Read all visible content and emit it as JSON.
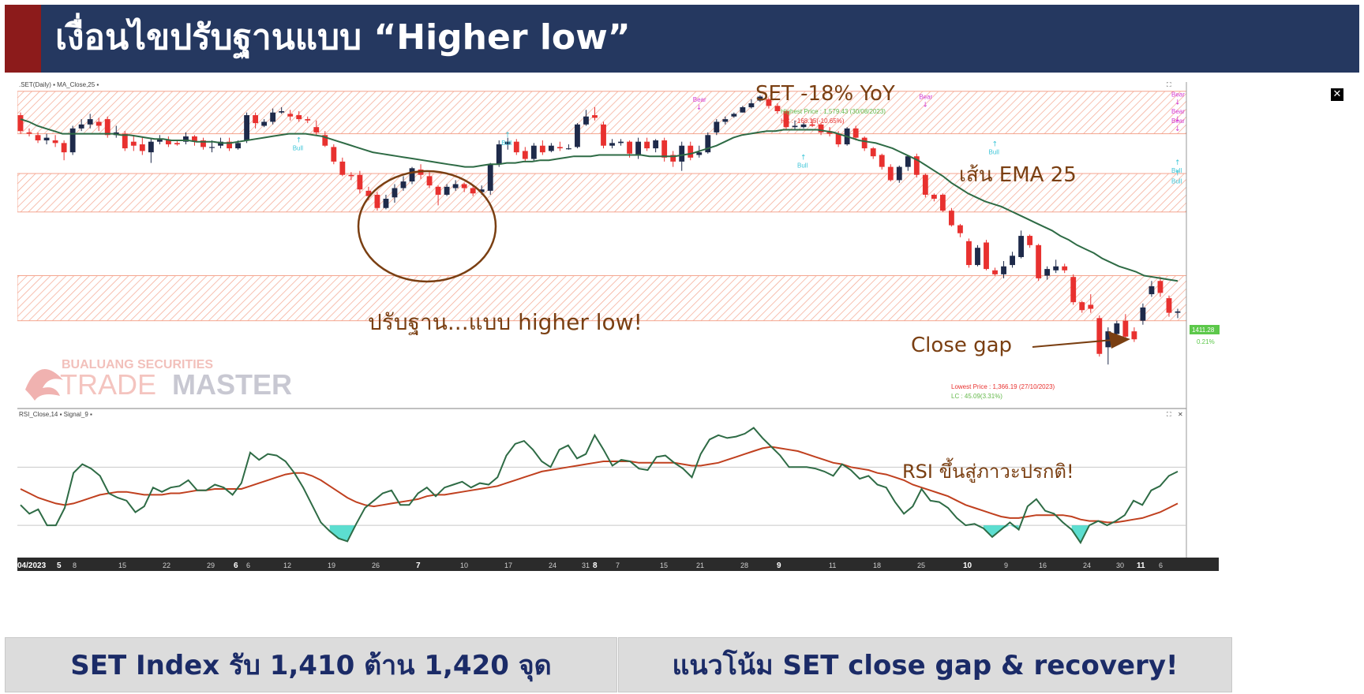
{
  "header": {
    "title": "เงื่อนไขปรับฐานแบบ “Higher low”"
  },
  "footer": {
    "left": "SET Index รับ 1,410 ต้าน 1,420 จุด",
    "right": "แนวโน้ม SET close gap & recovery!"
  },
  "colors": {
    "header_bg": "#253860",
    "header_accent": "#8c1b1b",
    "bull_candle": "#1e2a4a",
    "bear_candle": "#e8312f",
    "ema": "#2e6b45",
    "rsi": "#2e6b45",
    "signal": "#c0401f",
    "zone": "#f4a58f",
    "annotation": "#7a3f12",
    "footer_text": "#1b2b67",
    "rsi_fill": "#40d8c8"
  },
  "chart_data": [
    {
      "type": "candlestick",
      "legend": ".SET(Daily) ▪ MA_Close,25 ▪",
      "annotations": {
        "yoy": "SET -18% YoY",
        "ema": "เส้น EMA 25",
        "higher_low": "ปรับฐาน...แบบ higher low!",
        "close_gap": "Close gap",
        "highest_line1": "Highest Price : 1,579.43 (30/08/2023)",
        "highest_line2": "HC : -168.15(-10.65%)",
        "lowest_line1": "Lowest Price : 1,366.19 (27/10/2023)",
        "lowest_line2": "LC : 45.09(3.31%)",
        "price_tag": "1411.28",
        "pct_tag": "0.21%",
        "bull": "Bull",
        "bear": "Bear"
      },
      "watermark": {
        "line1": "BUALUANG SECURITIES",
        "line2_a": "TRADE",
        "line2_b": "MASTER"
      },
      "x_ticks": [
        "04/2023",
        "5",
        "8",
        "15",
        "22",
        "29",
        "6",
        "6",
        "12",
        "19",
        "26",
        "7",
        "10",
        "17",
        "24",
        "31",
        "8",
        "7",
        "15",
        "21",
        "28",
        "9",
        "11",
        "18",
        "25",
        "10",
        "9",
        "16",
        "24",
        "30",
        "11",
        "6"
      ],
      "candles": [
        [
          1565,
          1553,
          1567,
          1551
        ],
        [
          1552,
          1551,
          1555,
          1549
        ],
        [
          1550,
          1546,
          1552,
          1544
        ],
        [
          1546,
          1548,
          1551,
          1543
        ],
        [
          1546,
          1544,
          1550,
          1541
        ],
        [
          1544,
          1537,
          1546,
          1531
        ],
        [
          1537,
          1555,
          1557,
          1535
        ],
        [
          1555,
          1558,
          1562,
          1553
        ],
        [
          1558,
          1562,
          1566,
          1555
        ],
        [
          1560,
          1557,
          1563,
          1553
        ],
        [
          1562,
          1550,
          1564,
          1548
        ],
        [
          1550,
          1552,
          1557,
          1548
        ],
        [
          1551,
          1540,
          1553,
          1538
        ],
        [
          1545,
          1542,
          1550,
          1538
        ],
        [
          1543,
          1538,
          1549,
          1535
        ],
        [
          1537,
          1545,
          1547,
          1529
        ],
        [
          1545,
          1547,
          1550,
          1543
        ],
        [
          1546,
          1543,
          1549,
          1541
        ],
        [
          1544,
          1543,
          1546,
          1542
        ],
        [
          1545,
          1549,
          1552,
          1543
        ],
        [
          1549,
          1545,
          1550,
          1542
        ],
        [
          1546,
          1541,
          1548,
          1539
        ],
        [
          1541,
          1541,
          1546,
          1537
        ],
        [
          1542,
          1545,
          1548,
          1540
        ],
        [
          1545,
          1540,
          1548,
          1538
        ],
        [
          1540,
          1544,
          1546,
          1539
        ],
        [
          1546,
          1565,
          1567,
          1544
        ],
        [
          1565,
          1559,
          1567,
          1555
        ],
        [
          1557,
          1560,
          1562,
          1556
        ],
        [
          1560,
          1567,
          1570,
          1558
        ],
        [
          1567,
          1568,
          1571,
          1566
        ],
        [
          1566,
          1564,
          1569,
          1561
        ],
        [
          1565,
          1562,
          1568,
          1560
        ],
        [
          1562,
          1561,
          1564,
          1559
        ],
        [
          1556,
          1552,
          1561,
          1550
        ],
        [
          1550,
          1542,
          1553,
          1541
        ],
        [
          1541,
          1530,
          1543,
          1528
        ],
        [
          1530,
          1520,
          1533,
          1519
        ],
        [
          1520,
          1519,
          1522,
          1516
        ],
        [
          1520,
          1509,
          1523,
          1506
        ],
        [
          1508,
          1504,
          1511,
          1501
        ],
        [
          1505,
          1495,
          1507,
          1493
        ],
        [
          1495,
          1502,
          1505,
          1494
        ],
        [
          1503,
          1510,
          1513,
          1499
        ],
        [
          1510,
          1515,
          1519,
          1508
        ],
        [
          1515,
          1525,
          1526,
          1513
        ],
        [
          1524,
          1520,
          1528,
          1517
        ],
        [
          1519,
          1512,
          1522,
          1510
        ],
        [
          1511,
          1505,
          1512,
          1497
        ],
        [
          1505,
          1511,
          1513,
          1504
        ],
        [
          1510,
          1513,
          1516,
          1508
        ],
        [
          1513,
          1510,
          1514,
          1507
        ],
        [
          1510,
          1506,
          1512,
          1504
        ],
        [
          1507,
          1509,
          1512,
          1505
        ],
        [
          1508,
          1528,
          1529,
          1505
        ],
        [
          1528,
          1543,
          1546,
          1526
        ],
        [
          1543,
          1545,
          1548,
          1539
        ],
        [
          1545,
          1537,
          1547,
          1535
        ],
        [
          1538,
          1532,
          1541,
          1530
        ],
        [
          1532,
          1542,
          1544,
          1530
        ],
        [
          1542,
          1537,
          1546,
          1535
        ],
        [
          1538,
          1542,
          1544,
          1537
        ],
        [
          1541,
          1540,
          1545,
          1538
        ],
        [
          1540,
          1540,
          1543,
          1539
        ],
        [
          1541,
          1558,
          1559,
          1540
        ],
        [
          1558,
          1564,
          1569,
          1557
        ],
        [
          1565,
          1563,
          1571,
          1561
        ],
        [
          1558,
          1542,
          1560,
          1540
        ],
        [
          1542,
          1544,
          1547,
          1540
        ],
        [
          1544,
          1545,
          1547,
          1542
        ],
        [
          1545,
          1536,
          1546,
          1533
        ],
        [
          1535,
          1545,
          1548,
          1532
        ],
        [
          1545,
          1540,
          1548,
          1538
        ],
        [
          1540,
          1546,
          1547,
          1537
        ],
        [
          1546,
          1533,
          1548,
          1530
        ],
        [
          1535,
          1530,
          1538,
          1526
        ],
        [
          1530,
          1542,
          1545,
          1523
        ],
        [
          1542,
          1533,
          1545,
          1531
        ],
        [
          1535,
          1537,
          1542,
          1533
        ],
        [
          1537,
          1550,
          1552,
          1536
        ],
        [
          1552,
          1560,
          1562,
          1550
        ],
        [
          1560,
          1562,
          1564,
          1558
        ],
        [
          1564,
          1566,
          1567,
          1563
        ],
        [
          1567,
          1571,
          1572,
          1567
        ],
        [
          1571,
          1574,
          1577,
          1570
        ],
        [
          1576,
          1579,
          1580,
          1575
        ],
        [
          1577,
          1572,
          1578,
          1570
        ],
        [
          1572,
          1568,
          1574,
          1566
        ],
        [
          1568,
          1556,
          1569,
          1554
        ],
        [
          1556,
          1557,
          1561,
          1554
        ],
        [
          1556,
          1558,
          1560,
          1555
        ],
        [
          1558,
          1557,
          1562,
          1556
        ],
        [
          1558,
          1552,
          1559,
          1550
        ],
        [
          1553,
          1551,
          1556,
          1549
        ],
        [
          1551,
          1543,
          1553,
          1541
        ],
        [
          1543,
          1555,
          1556,
          1542
        ],
        [
          1555,
          1548,
          1557,
          1546
        ],
        [
          1548,
          1540,
          1549,
          1538
        ],
        [
          1540,
          1534,
          1541,
          1532
        ],
        [
          1535,
          1526,
          1536,
          1524
        ],
        [
          1526,
          1516,
          1528,
          1515
        ],
        [
          1516,
          1526,
          1527,
          1514
        ],
        [
          1526,
          1534,
          1535,
          1523
        ],
        [
          1534,
          1520,
          1536,
          1518
        ],
        [
          1520,
          1505,
          1521,
          1503
        ],
        [
          1505,
          1502,
          1506,
          1500
        ],
        [
          1505,
          1493,
          1506,
          1492
        ],
        [
          1493,
          1482,
          1495,
          1481
        ],
        [
          1482,
          1476,
          1483,
          1473
        ],
        [
          1470,
          1452,
          1472,
          1450
        ],
        [
          1452,
          1465,
          1467,
          1451
        ],
        [
          1469,
          1449,
          1471,
          1448
        ],
        [
          1448,
          1445,
          1450,
          1444
        ],
        [
          1445,
          1451,
          1455,
          1442
        ],
        [
          1452,
          1459,
          1462,
          1450
        ],
        [
          1458,
          1474,
          1478,
          1457
        ],
        [
          1474,
          1467,
          1475,
          1465
        ],
        [
          1467,
          1442,
          1468,
          1440
        ],
        [
          1444,
          1449,
          1451,
          1441
        ],
        [
          1448,
          1451,
          1456,
          1446
        ],
        [
          1451,
          1448,
          1453,
          1446
        ],
        [
          1443,
          1424,
          1445,
          1422
        ],
        [
          1424,
          1418,
          1425,
          1416
        ],
        [
          1422,
          1419,
          1430,
          1416
        ],
        [
          1412,
          1385,
          1414,
          1383
        ],
        [
          1390,
          1402,
          1405,
          1377
        ],
        [
          1400,
          1408,
          1410,
          1398
        ],
        [
          1410,
          1398,
          1415,
          1396
        ],
        [
          1402,
          1396,
          1405,
          1394
        ],
        [
          1410,
          1420,
          1423,
          1407
        ],
        [
          1430,
          1436,
          1440,
          1428
        ],
        [
          1440,
          1431,
          1443,
          1428
        ],
        [
          1427,
          1416,
          1429,
          1413
        ],
        [
          1416,
          1417,
          1419,
          1412
        ]
      ],
      "ema25": [
        1562,
        1560,
        1557,
        1555,
        1553,
        1551,
        1551,
        1551,
        1551,
        1551,
        1551,
        1551,
        1550,
        1550,
        1549,
        1548,
        1547,
        1547,
        1546,
        1546,
        1546,
        1545,
        1545,
        1545,
        1544,
        1544,
        1545,
        1546,
        1547,
        1548,
        1549,
        1550,
        1551,
        1551,
        1551,
        1550,
        1549,
        1547,
        1545,
        1543,
        1541,
        1539,
        1537,
        1536,
        1535,
        1534,
        1533,
        1532,
        1531,
        1530,
        1529,
        1528,
        1527,
        1526,
        1526,
        1527,
        1528,
        1528,
        1529,
        1529,
        1530,
        1530,
        1531,
        1531,
        1532,
        1533,
        1534,
        1534,
        1534,
        1535,
        1535,
        1535,
        1535,
        1535,
        1535,
        1534,
        1534,
        1534,
        1534,
        1535,
        1536,
        1538,
        1540,
        1542,
        1545,
        1548,
        1550,
        1551,
        1552,
        1553,
        1553,
        1554,
        1554,
        1554,
        1554,
        1554,
        1553,
        1552,
        1550,
        1548,
        1546,
        1545,
        1544,
        1542,
        1540,
        1537,
        1534,
        1531,
        1527,
        1523,
        1519,
        1514,
        1510,
        1506,
        1503,
        1500,
        1498,
        1496,
        1493,
        1490,
        1487,
        1484,
        1481,
        1478,
        1474,
        1471,
        1467,
        1464,
        1461,
        1457,
        1454,
        1451,
        1449,
        1447,
        1444,
        1443,
        1442,
        1441,
        1440
      ]
    },
    {
      "type": "line",
      "legend": "RSI_Close,14 ▪ Signal_9 ▪",
      "ylim": [
        0,
        100
      ],
      "series": [
        {
          "name": "RSI_Close,14",
          "values": [
            44,
            38,
            41,
            30,
            30,
            42,
            66,
            72,
            69,
            64,
            52,
            49,
            47,
            39,
            43,
            56,
            53,
            56,
            57,
            61,
            54,
            54,
            58,
            56,
            51,
            59,
            80,
            75,
            79,
            78,
            74,
            66,
            56,
            44,
            32,
            26,
            21,
            19,
            31,
            42,
            47,
            52,
            54,
            44,
            44,
            52,
            56,
            50,
            56,
            58,
            60,
            56,
            59,
            58,
            63,
            78,
            86,
            88,
            82,
            74,
            70,
            82,
            85,
            76,
            79,
            92,
            82,
            71,
            75,
            74,
            69,
            68,
            77,
            78,
            73,
            69,
            63,
            79,
            89,
            92,
            90,
            91,
            93,
            97,
            90,
            84,
            78,
            70,
            70,
            70,
            69,
            67,
            64,
            72,
            68,
            62,
            64,
            58,
            56,
            46,
            38,
            43,
            55,
            47,
            46,
            42,
            35,
            30,
            31,
            28,
            22,
            27,
            32,
            27,
            43,
            48,
            40,
            38,
            32,
            27,
            18,
            30,
            33,
            30,
            33,
            37,
            47,
            44,
            54,
            57,
            64,
            67
          ]
        },
        {
          "name": "Signal_9",
          "values": [
            55,
            52,
            49,
            47,
            45,
            44,
            45,
            47,
            49,
            51,
            52,
            53,
            53,
            52,
            51,
            51,
            51,
            52,
            52,
            53,
            54,
            54,
            55,
            55,
            55,
            55,
            57,
            59,
            61,
            63,
            65,
            66,
            66,
            64,
            61,
            57,
            53,
            49,
            46,
            44,
            43,
            44,
            45,
            46,
            47,
            48,
            50,
            51,
            51,
            52,
            53,
            54,
            55,
            56,
            57,
            59,
            61,
            63,
            65,
            67,
            68,
            69,
            70,
            71,
            72,
            73,
            74,
            74,
            74,
            74,
            73,
            73,
            73,
            73,
            73,
            72,
            71,
            71,
            72,
            73,
            75,
            77,
            79,
            81,
            83,
            84,
            83,
            82,
            81,
            79,
            77,
            75,
            73,
            72,
            70,
            69,
            68,
            66,
            65,
            63,
            61,
            58,
            56,
            54,
            52,
            50,
            47,
            44,
            42,
            40,
            38,
            36,
            35,
            35,
            36,
            37,
            37,
            37,
            37,
            36,
            34,
            33,
            33,
            32,
            32,
            33,
            34,
            35,
            37,
            39,
            42,
            45
          ]
        }
      ]
    }
  ]
}
